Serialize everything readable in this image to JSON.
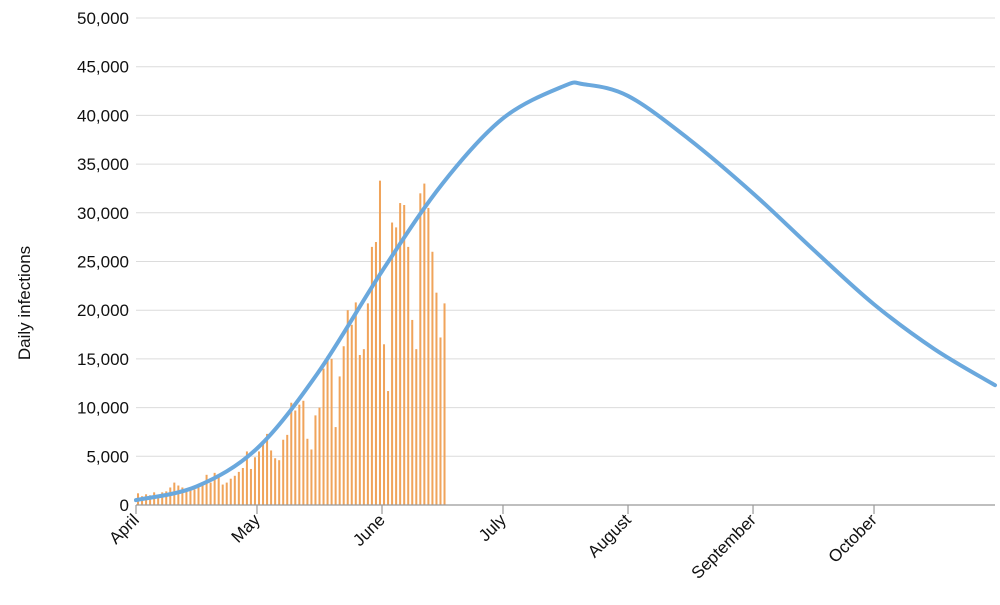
{
  "chart_data": {
    "type": "bar",
    "title": "",
    "ylabel": "Daily  infections",
    "xlabel": "",
    "ylim": [
      0,
      50000
    ],
    "yticks": [
      0,
      5000,
      10000,
      15000,
      20000,
      25000,
      30000,
      35000,
      40000,
      45000,
      50000
    ],
    "ytick_labels": [
      "0",
      "5,000",
      "10,000",
      "15,000",
      "20,000",
      "25,000",
      "30,000",
      "35,000",
      "40,000",
      "45,000",
      "50,000"
    ],
    "xlim": [
      "2020-04-01",
      "2020-10-31"
    ],
    "xticks": [
      {
        "date": "2020-04-01",
        "label": "April"
      },
      {
        "date": "2020-05-01",
        "label": "May"
      },
      {
        "date": "2020-06-01",
        "label": "June"
      },
      {
        "date": "2020-07-01",
        "label": "July"
      },
      {
        "date": "2020-08-01",
        "label": "August"
      },
      {
        "date": "2020-09-01",
        "label": "September"
      },
      {
        "date": "2020-10-01",
        "label": "October"
      }
    ],
    "grid": true,
    "series": [
      {
        "kind": "bar",
        "color": "#f0a45b",
        "x": [
          "2020-04-01",
          "2020-04-02",
          "2020-04-03",
          "2020-04-04",
          "2020-04-05",
          "2020-04-06",
          "2020-04-07",
          "2020-04-08",
          "2020-04-09",
          "2020-04-10",
          "2020-04-11",
          "2020-04-12",
          "2020-04-13",
          "2020-04-14",
          "2020-04-15",
          "2020-04-16",
          "2020-04-17",
          "2020-04-18",
          "2020-04-19",
          "2020-04-20",
          "2020-04-21",
          "2020-04-22",
          "2020-04-23",
          "2020-04-24",
          "2020-04-25",
          "2020-04-26",
          "2020-04-27",
          "2020-04-28",
          "2020-04-29",
          "2020-04-30",
          "2020-05-01",
          "2020-05-02",
          "2020-05-03",
          "2020-05-04",
          "2020-05-05",
          "2020-05-06",
          "2020-05-07",
          "2020-05-08",
          "2020-05-09",
          "2020-05-10",
          "2020-05-11",
          "2020-05-12",
          "2020-05-13",
          "2020-05-14",
          "2020-05-15",
          "2020-05-16",
          "2020-05-17",
          "2020-05-18",
          "2020-05-19",
          "2020-05-20",
          "2020-05-21",
          "2020-05-22",
          "2020-05-23",
          "2020-05-24",
          "2020-05-25",
          "2020-05-26",
          "2020-05-27",
          "2020-05-28",
          "2020-05-29",
          "2020-05-30",
          "2020-05-31",
          "2020-06-01",
          "2020-06-02",
          "2020-06-03",
          "2020-06-04",
          "2020-06-05",
          "2020-06-06",
          "2020-06-07",
          "2020-06-08",
          "2020-06-09",
          "2020-06-10",
          "2020-06-11",
          "2020-06-12",
          "2020-06-13",
          "2020-06-14",
          "2020-06-15",
          "2020-06-16"
        ],
        "values": [
          1200,
          900,
          1100,
          1000,
          1300,
          900,
          1300,
          1400,
          1800,
          2300,
          2000,
          1800,
          1700,
          1500,
          1600,
          1800,
          2100,
          3100,
          2300,
          3300,
          2900,
          2100,
          2300,
          2700,
          3000,
          3400,
          3800,
          5500,
          3700,
          4900,
          5500,
          6300,
          7300,
          5600,
          4800,
          4600,
          6700,
          7200,
          10500,
          9700,
          10300,
          10700,
          6800,
          5700,
          9200,
          10000,
          14000,
          15300,
          15000,
          8000,
          13200,
          16300,
          20000,
          18500,
          20800,
          15400,
          16000,
          20700,
          26500,
          27000,
          33300,
          16500,
          11700,
          29000,
          28500,
          31000,
          30800,
          26500,
          19000,
          16000,
          32000,
          33000,
          30500,
          26000,
          21800,
          17200,
          20700
        ]
      },
      {
        "kind": "line",
        "color": "#6aa8dd",
        "x": [
          "2020-04-01",
          "2020-04-16",
          "2020-05-01",
          "2020-05-16",
          "2020-06-01",
          "2020-06-16",
          "2020-07-01",
          "2020-07-16",
          "2020-07-21",
          "2020-08-01",
          "2020-08-16",
          "2020-09-01",
          "2020-09-16",
          "2020-10-01",
          "2020-10-16",
          "2020-10-31"
        ],
        "values": [
          500,
          1900,
          5800,
          13500,
          24000,
          33000,
          39700,
          43000,
          43200,
          42000,
          37600,
          32000,
          26200,
          20600,
          16000,
          12300
        ]
      }
    ]
  }
}
